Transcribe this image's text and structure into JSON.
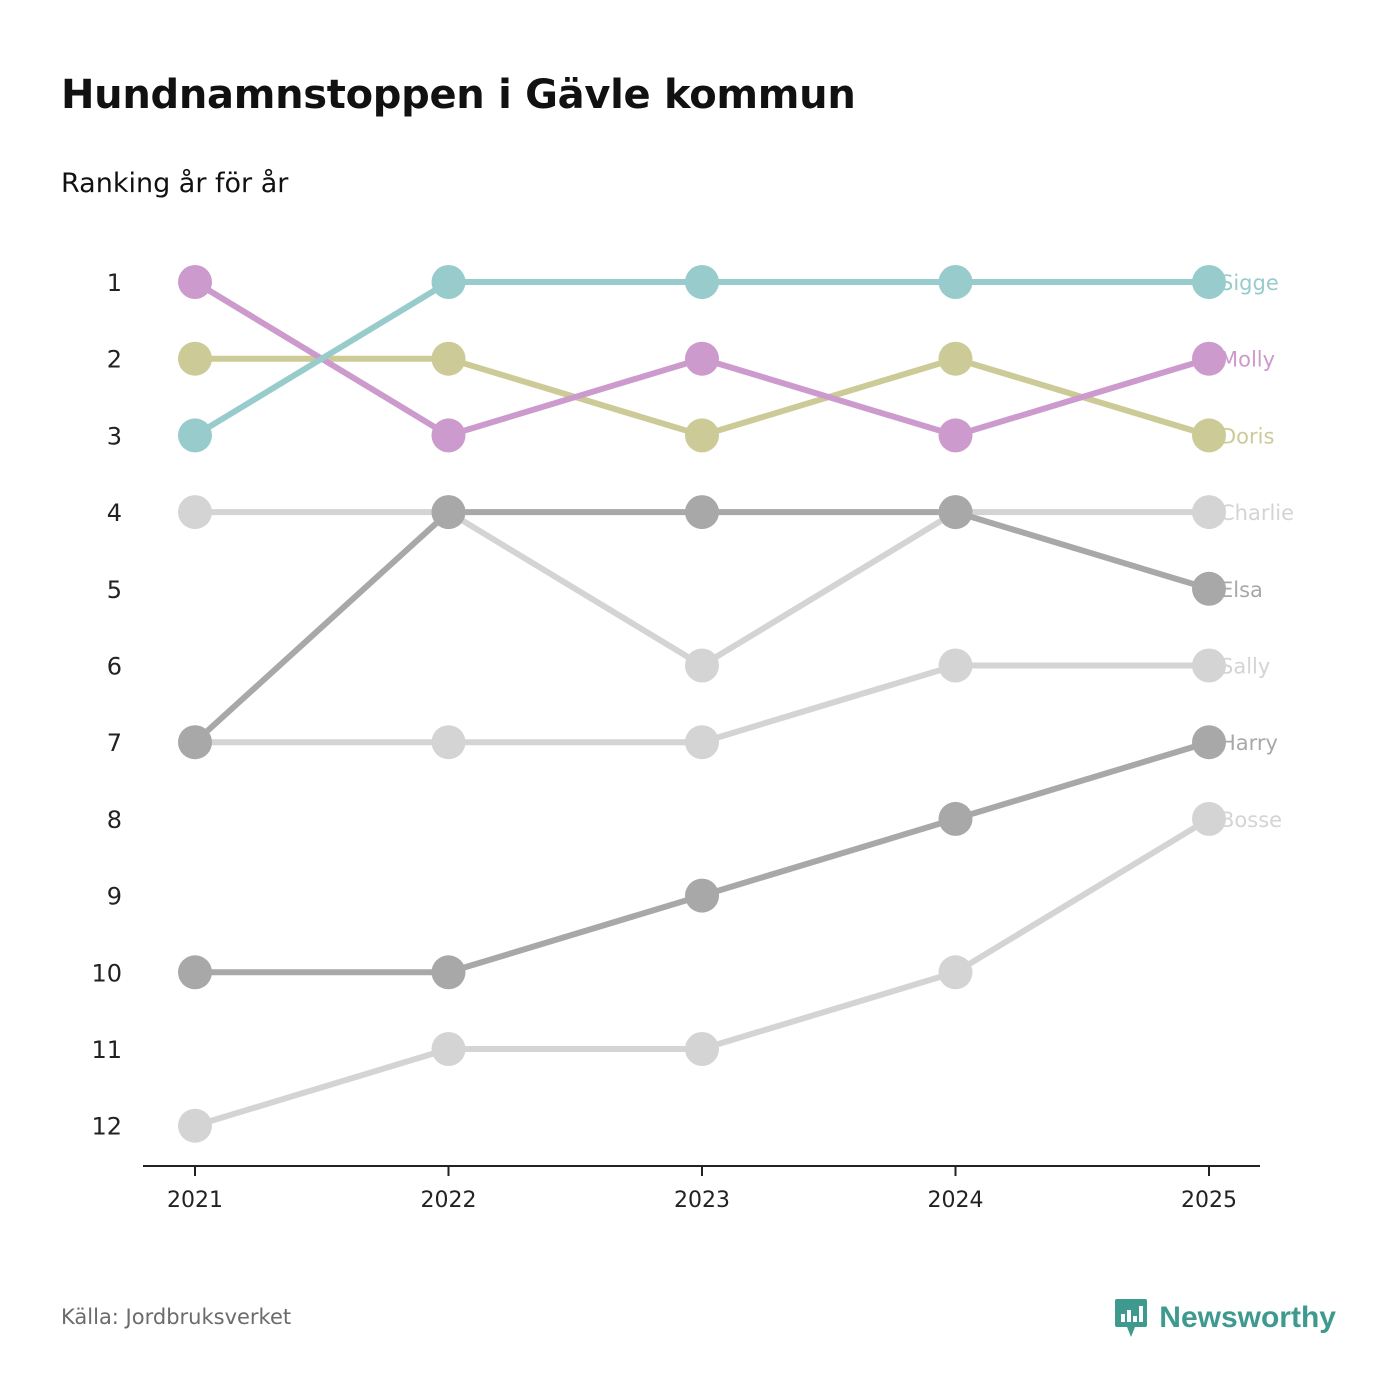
{
  "title": "Hundnamnstoppen i Gävle kommun",
  "subtitle": "Ranking år för år",
  "source": "Källa: Jordbruksverket",
  "brand": {
    "name": "Newsworthy",
    "logo_icon": "newsworthy-logo-icon",
    "color": "#3e9a8f"
  },
  "chart_data": {
    "type": "line",
    "x": [
      "2021",
      "2022",
      "2023",
      "2024",
      "2025"
    ],
    "y_ticks": [
      1,
      2,
      3,
      4,
      5,
      6,
      7,
      8,
      9,
      10,
      11,
      12
    ],
    "ylim": [
      1,
      12
    ],
    "y_reversed": true,
    "grid": false,
    "legend": "direct labels at right end",
    "series": [
      {
        "name": "Charlie",
        "values": [
          4,
          4,
          6,
          4,
          4
        ],
        "color": "#d4d4d4",
        "highlight": false
      },
      {
        "name": "Sally",
        "values": [
          7,
          7,
          7,
          6,
          6
        ],
        "color": "#d4d4d4",
        "highlight": false
      },
      {
        "name": "Bosse",
        "values": [
          12,
          11,
          11,
          10,
          8
        ],
        "color": "#d4d4d4",
        "highlight": false
      },
      {
        "name": "Elsa",
        "values": [
          7,
          4,
          4,
          4,
          5
        ],
        "color": "#a8a8a8",
        "highlight": false
      },
      {
        "name": "Harry",
        "values": [
          10,
          10,
          9,
          8,
          7
        ],
        "color": "#a8a8a8",
        "highlight": false
      },
      {
        "name": "Doris",
        "values": [
          2,
          2,
          3,
          2,
          3
        ],
        "color": "#cccb97",
        "highlight": true
      },
      {
        "name": "Molly",
        "values": [
          1,
          3,
          2,
          3,
          2
        ],
        "color": "#cc9acd",
        "highlight": true
      },
      {
        "name": "Sigge",
        "values": [
          3,
          1,
          1,
          1,
          1
        ],
        "color": "#98cbcb",
        "highlight": true
      }
    ]
  }
}
